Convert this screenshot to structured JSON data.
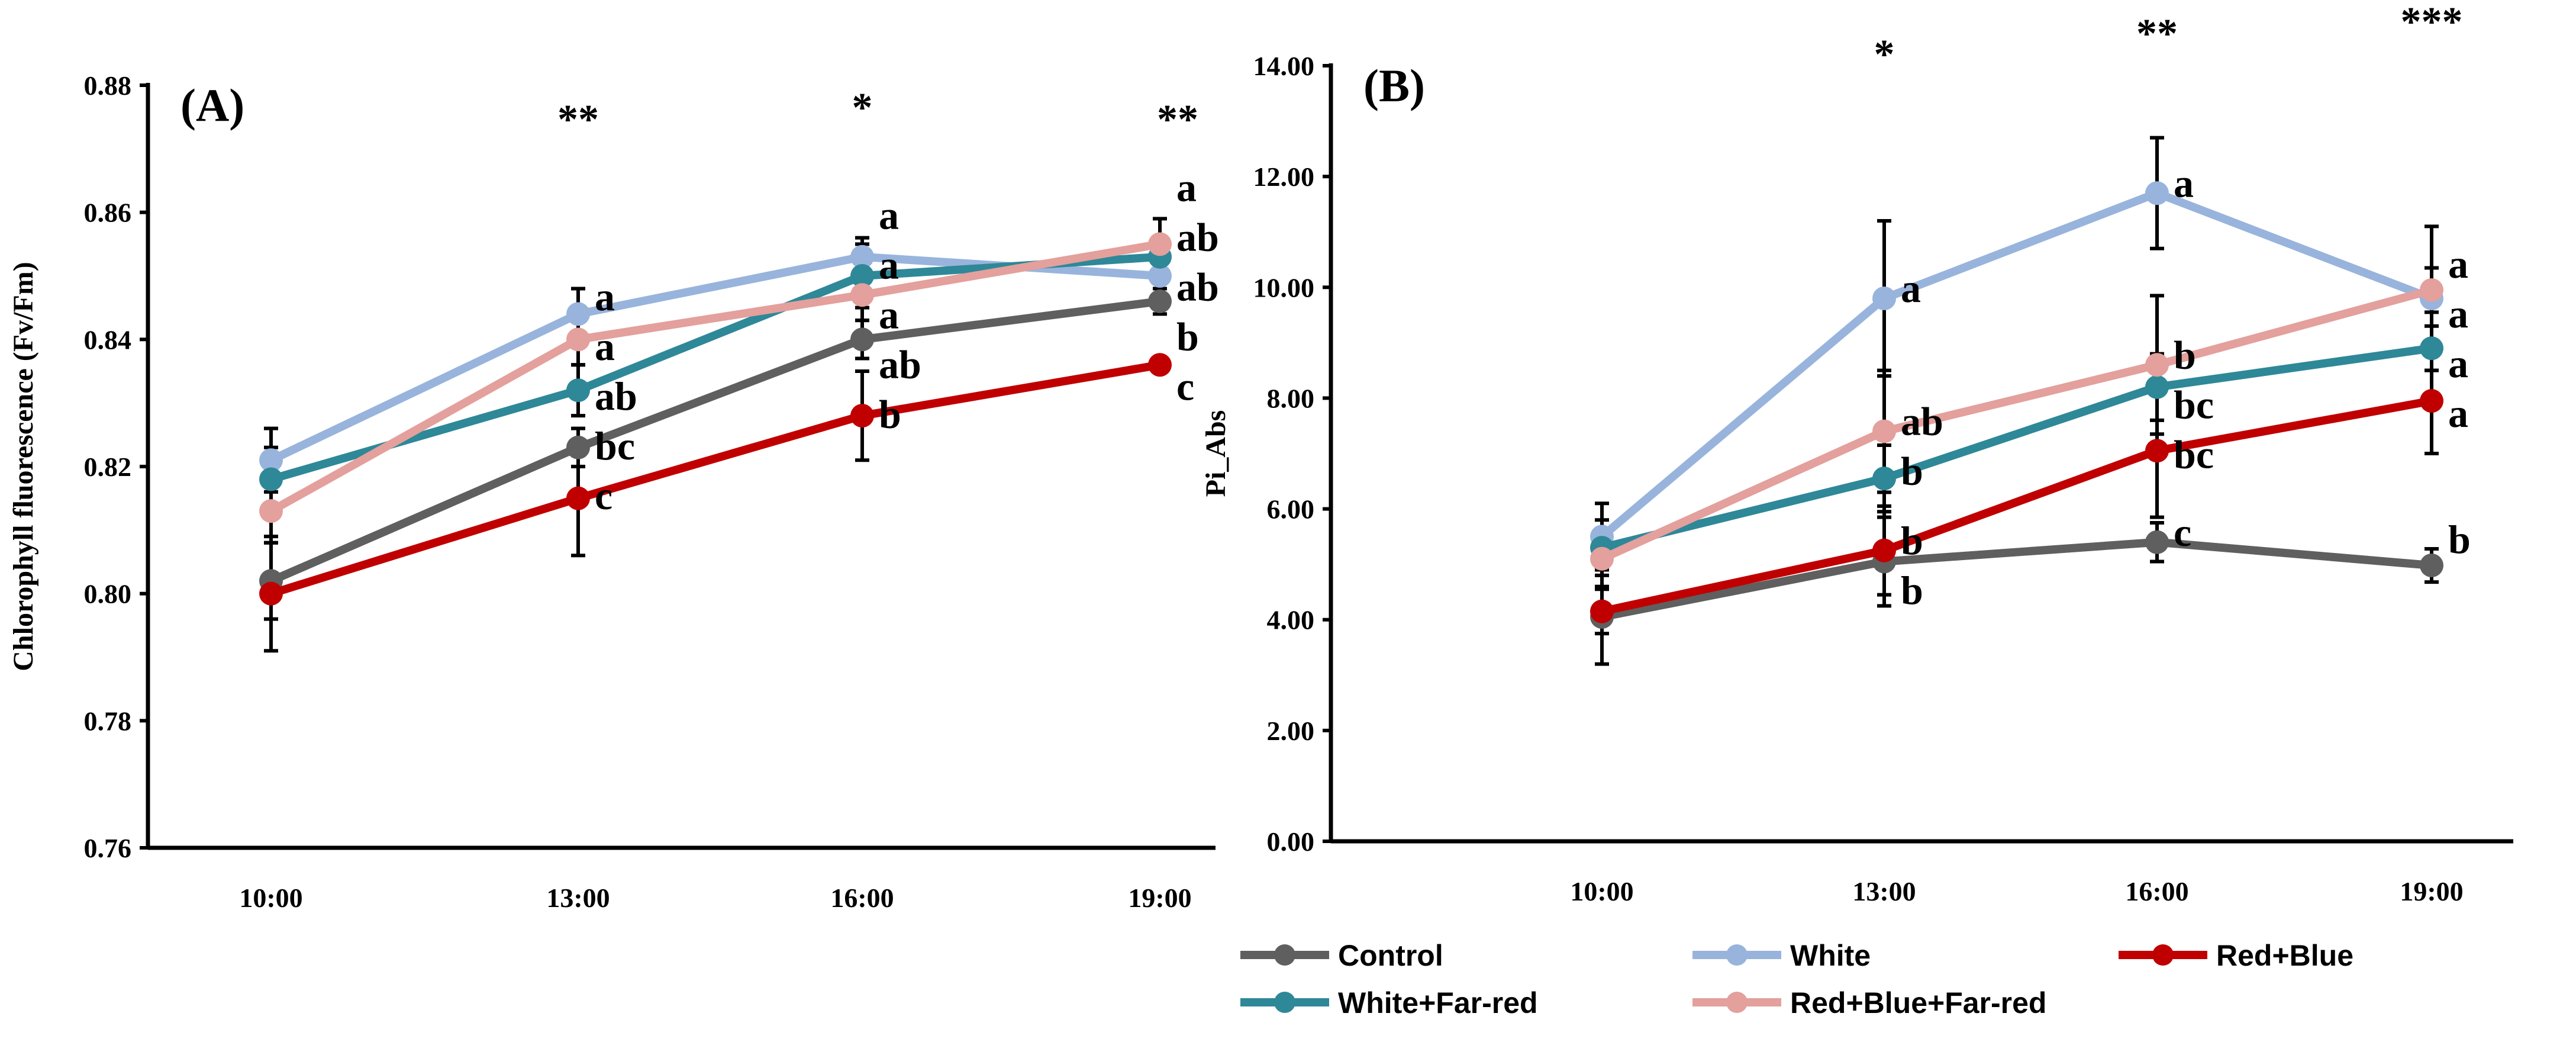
{
  "colors": {
    "Control": "#5f5f5f",
    "White": "#98b4dc",
    "Red+Blue": "#c00000",
    "White+Far-red": "#2e8898",
    "Red+Blue+Far-red": "#e3a09c"
  },
  "legend": [
    "Control",
    "White",
    "Red+Blue",
    "White+Far-red",
    "Red+Blue+Far-red"
  ],
  "chart_data": [
    {
      "type": "line",
      "panel_label": "(A)",
      "ylabel": "Chlorophyll  fluorescence (Fv/Fm)",
      "xlabel": "",
      "categories": [
        "10:00",
        "13:00",
        "16:00",
        "19:00"
      ],
      "ylim": [
        0.76,
        0.88
      ],
      "yticks": [
        "0.76",
        "0.78",
        "0.80",
        "0.82",
        "0.84",
        "0.86",
        "0.88"
      ],
      "significance": [
        "",
        "**",
        "*",
        "**"
      ],
      "series": [
        {
          "name": "Control",
          "values": [
            0.802,
            0.823,
            0.84,
            0.846
          ],
          "errors": [
            0.006,
            0.003,
            0.003,
            0.002
          ],
          "letters": [
            "",
            "bc",
            "ab",
            "b"
          ]
        },
        {
          "name": "White",
          "values": [
            0.821,
            0.844,
            0.853,
            0.85
          ],
          "errors": [
            0.005,
            0.004,
            0.003,
            0.002
          ],
          "letters": [
            "",
            "a",
            "a",
            "ab"
          ]
        },
        {
          "name": "Red+Blue",
          "values": [
            0.8,
            0.815,
            0.828,
            0.836
          ],
          "errors": [
            0.009,
            0.009,
            0.007,
            0.001
          ],
          "letters": [
            "",
            "c",
            "b",
            "c"
          ]
        },
        {
          "name": "White+Far-red",
          "values": [
            0.818,
            0.832,
            0.85,
            0.853
          ],
          "errors": [
            0.005,
            0.004,
            0.005,
            0.002
          ],
          "letters": [
            "",
            "ab",
            "a",
            "ab"
          ]
        },
        {
          "name": "Red+Blue+Far-red",
          "values": [
            0.813,
            0.84,
            0.847,
            0.855
          ],
          "errors": [
            0.005,
            0.004,
            0.004,
            0.004
          ],
          "letters": [
            "",
            "a",
            "a",
            "a"
          ]
        }
      ]
    },
    {
      "type": "line",
      "panel_label": "(B)",
      "ylabel": "Pi_Abs",
      "xlabel": "",
      "categories": [
        "10:00",
        "13:00",
        "16:00",
        "19:00"
      ],
      "ylim": [
        0,
        14
      ],
      "yticks": [
        "0.00",
        "2.00",
        "4.00",
        "6.00",
        "8.00",
        "10.00",
        "12.00",
        "14.00"
      ],
      "significance": [
        "",
        "*",
        "**",
        "***"
      ],
      "series": [
        {
          "name": "Control",
          "values": [
            4.05,
            5.05,
            5.4,
            4.98
          ],
          "errors": [
            0.85,
            0.8,
            0.35,
            0.3
          ],
          "letters": [
            "",
            "b",
            "c",
            "b"
          ]
        },
        {
          "name": "White",
          "values": [
            5.5,
            9.8,
            11.7,
            9.8
          ],
          "errors": [
            0.6,
            1.4,
            1.0,
            1.3
          ],
          "letters": [
            "",
            "a",
            "a",
            "a"
          ]
        },
        {
          "name": "Red+Blue",
          "values": [
            4.15,
            5.25,
            7.05,
            7.95
          ],
          "errors": [
            0.4,
            0.8,
            1.2,
            0.95
          ],
          "letters": [
            "",
            "b",
            "bc",
            "a"
          ]
        },
        {
          "name": "White+Far-red",
          "values": [
            5.3,
            6.55,
            8.2,
            8.9
          ],
          "errors": [
            0.5,
            0.6,
            0.6,
            0.4
          ],
          "letters": [
            "",
            "b",
            "bc",
            "a"
          ]
        },
        {
          "name": "Red+Blue+Far-red",
          "values": [
            5.1,
            7.4,
            8.6,
            9.95
          ],
          "errors": [
            0.5,
            1.1,
            1.25,
            0.4
          ],
          "letters": [
            "",
            "ab",
            "b",
            "a"
          ]
        }
      ]
    }
  ]
}
